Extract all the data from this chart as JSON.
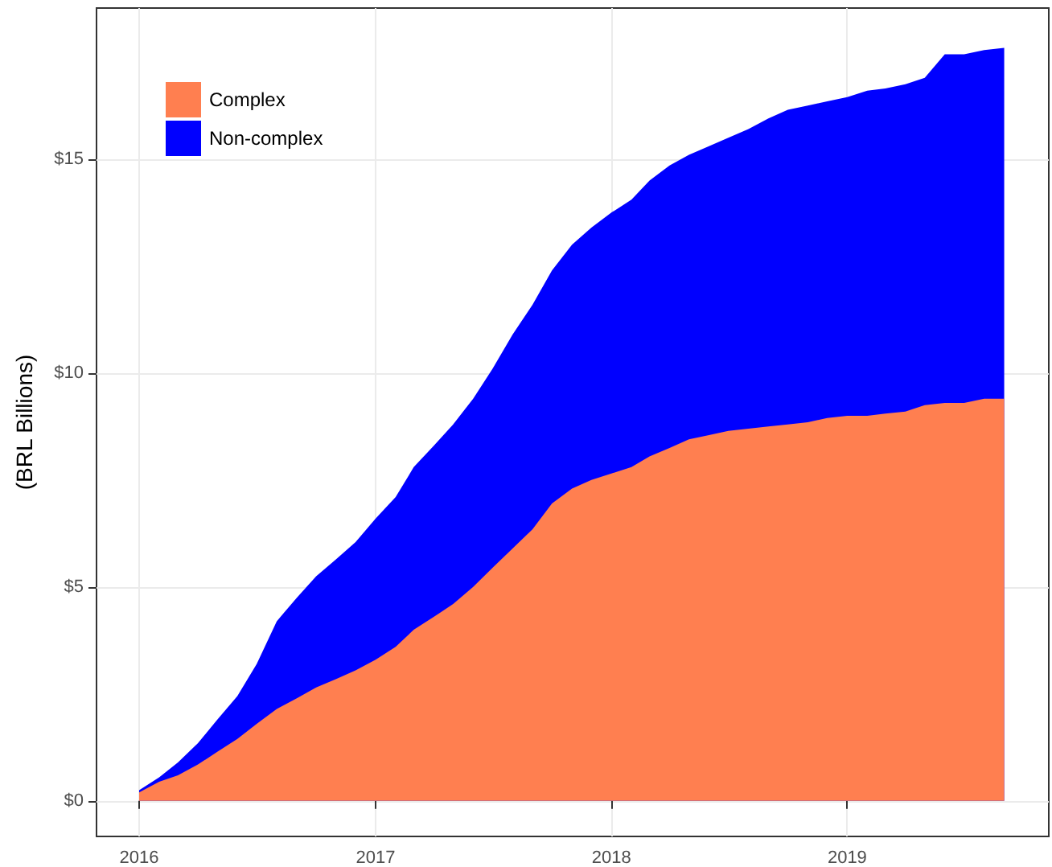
{
  "chart_data": {
    "type": "area",
    "ylabel": "(BRL Billions)",
    "stacked": true,
    "legend": "top left",
    "grid": true,
    "x": [
      "2016-01",
      "2016-02",
      "2016-03",
      "2016-04",
      "2016-05",
      "2016-06",
      "2016-07",
      "2016-08",
      "2016-09",
      "2016-10",
      "2016-11",
      "2016-12",
      "2017-01",
      "2017-02",
      "2017-03",
      "2017-04",
      "2017-05",
      "2017-06",
      "2017-07",
      "2017-08",
      "2017-09",
      "2017-10",
      "2017-11",
      "2017-12",
      "2018-01",
      "2018-02",
      "2018-03",
      "2018-04",
      "2018-05",
      "2018-06",
      "2018-07",
      "2018-08",
      "2018-09",
      "2018-10",
      "2018-11",
      "2018-12",
      "2019-01",
      "2019-02",
      "2019-03",
      "2019-04",
      "2019-05",
      "2019-06",
      "2019-07",
      "2019-08",
      "2019-09"
    ],
    "series": [
      {
        "name": "Complex",
        "color": "#ff7f50",
        "values": [
          0.2,
          0.45,
          0.6,
          0.85,
          1.15,
          1.45,
          1.8,
          2.15,
          2.4,
          2.65,
          2.85,
          3.05,
          3.3,
          3.6,
          4.0,
          4.3,
          4.6,
          5.0,
          5.45,
          5.9,
          6.35,
          6.95,
          7.3,
          7.5,
          7.65,
          7.8,
          8.05,
          8.25,
          8.45,
          8.55,
          8.65,
          8.7,
          8.75,
          8.8,
          8.85,
          8.95,
          9.0,
          9.0,
          9.05,
          9.1,
          9.25,
          9.3,
          9.3,
          9.4,
          9.4
        ]
      },
      {
        "name": "Non-complex",
        "color": "#0000ff",
        "values": [
          0.05,
          0.1,
          0.3,
          0.5,
          0.75,
          1.0,
          1.4,
          2.05,
          2.35,
          2.6,
          2.8,
          3.0,
          3.3,
          3.5,
          3.8,
          4.0,
          4.2,
          4.4,
          4.65,
          5.0,
          5.25,
          5.45,
          5.7,
          5.9,
          6.1,
          6.25,
          6.45,
          6.6,
          6.65,
          6.75,
          6.85,
          7.0,
          7.2,
          7.35,
          7.4,
          7.4,
          7.45,
          7.6,
          7.6,
          7.65,
          7.65,
          8.15,
          8.15,
          8.15,
          8.2
        ]
      }
    ],
    "xlim": [
      "2015-10-27",
      "2019-11-09"
    ],
    "xticks": [
      "2016",
      "2017",
      "2018",
      "2019"
    ],
    "ylim": [
      -0.83,
      18.53
    ],
    "yticks": [
      {
        "value": 0,
        "label": "$0"
      },
      {
        "value": 5,
        "label": "$5"
      },
      {
        "value": 10,
        "label": "$10"
      },
      {
        "value": 15,
        "label": "$15"
      }
    ]
  }
}
